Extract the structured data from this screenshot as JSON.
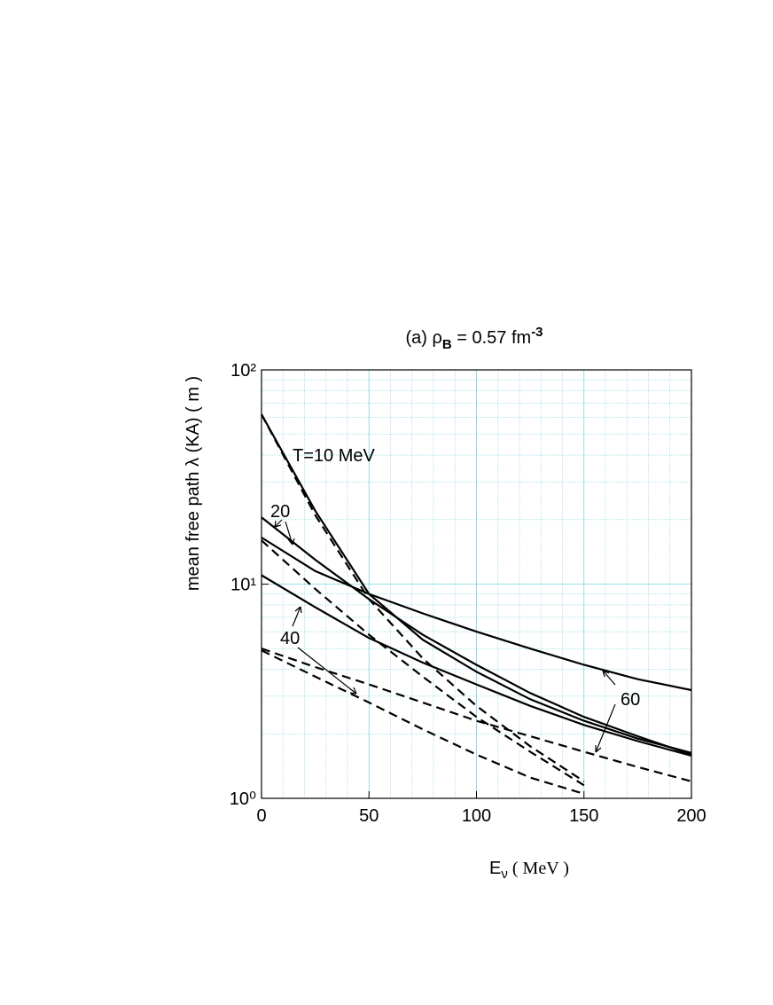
{
  "chart_data": {
    "type": "line",
    "title": {
      "prefix": "(a)  ρ",
      "sub": "B",
      "mid": " = 0.57 fm",
      "sup": "-3"
    },
    "x_label": {
      "main": "E",
      "sub": "ν",
      "rest": " ( MeV )"
    },
    "y_label": "mean free path λ (KA) ( m )",
    "x": [
      0,
      25,
      50,
      75,
      100,
      125,
      150,
      175,
      200
    ],
    "series": [
      {
        "color": "#000000",
        "dashed": false,
        "values": [
          62,
          22,
          9,
          5.5,
          3.9,
          2.9,
          2.3,
          1.9,
          1.63
        ]
      },
      {
        "color": "#000000",
        "dashed": false,
        "values": [
          20.5,
          13,
          8.5,
          5.8,
          4.2,
          3.1,
          2.4,
          1.95,
          1.6
        ]
      },
      {
        "color": "#000000",
        "dashed": false,
        "values": [
          11,
          7.8,
          5.6,
          4.3,
          3.4,
          2.7,
          2.2,
          1.85,
          1.58
        ]
      },
      {
        "color": "#000000",
        "dashed": false,
        "values": [
          16.5,
          11.5,
          9,
          7.3,
          6,
          5,
          4.2,
          3.6,
          3.2
        ]
      },
      {
        "color": "#000000",
        "dashed": true,
        "values": [
          62,
          21,
          8.5,
          4.5,
          2.7,
          1.75,
          1.2,
          null,
          null
        ]
      },
      {
        "color": "#000000",
        "dashed": true,
        "values": [
          16,
          9.5,
          5.8,
          3.7,
          2.4,
          1.65,
          1.15,
          null,
          null
        ]
      },
      {
        "color": "#000000",
        "dashed": true,
        "values": [
          4.9,
          3.7,
          2.8,
          2.1,
          1.6,
          1.25,
          1.05,
          null,
          null
        ]
      },
      {
        "color": "#000000",
        "dashed": true,
        "values": [
          5,
          4.1,
          3.4,
          2.8,
          2.3,
          1.95,
          1.65,
          1.4,
          1.2
        ]
      }
    ],
    "annotations": [
      "T=10 MeV",
      "20",
      "40",
      "60"
    ],
    "xlim": [
      0,
      200
    ],
    "xticks": [
      0,
      50,
      100,
      150,
      200
    ],
    "ylim": [
      1,
      100
    ],
    "yticks": [
      {
        "value": 1,
        "label": "10⁰"
      },
      {
        "value": 10,
        "label": "10¹"
      },
      {
        "value": 100,
        "label": "10²"
      }
    ],
    "y_log": true,
    "grid": true,
    "grid_color": "#7fd6df"
  }
}
